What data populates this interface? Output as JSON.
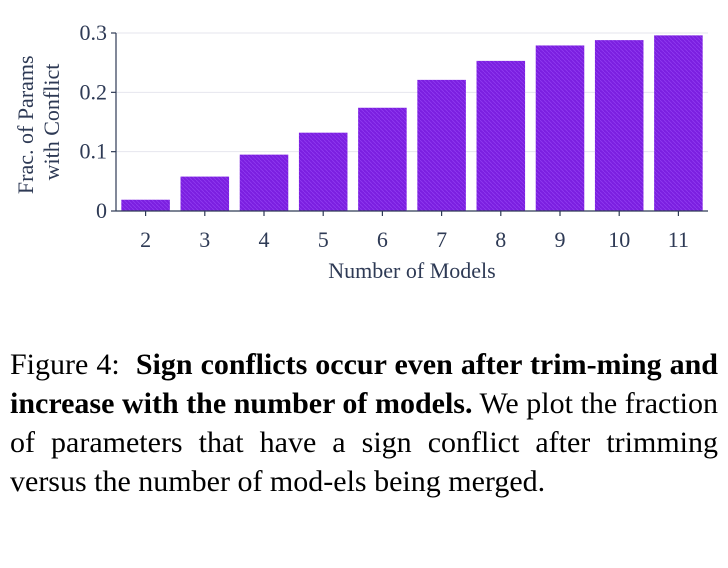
{
  "chart_data": {
    "type": "bar",
    "categories": [
      "2",
      "3",
      "4",
      "5",
      "6",
      "7",
      "8",
      "9",
      "10",
      "11"
    ],
    "values": [
      0.019,
      0.058,
      0.095,
      0.132,
      0.174,
      0.221,
      0.253,
      0.279,
      0.288,
      0.296
    ],
    "xlabel": "Number of Models",
    "ylabel_lines": [
      "Frac. of Params",
      "with Conflict"
    ],
    "ylim": [
      0,
      0.3
    ],
    "yticks": [
      0,
      0.1,
      0.2,
      0.3
    ],
    "ytick_labels": [
      "0",
      "0.1",
      "0.2",
      "0.3"
    ],
    "bar_color": "#7b1fe0",
    "grid": true
  },
  "caption": {
    "prefix": "Figure 4:",
    "title": "Sign conflicts occur even after trim-ming and increase with the number of models.",
    "body": "We plot the fraction of parameters that have a sign conflict after trimming versus the number of mod-els being merged."
  }
}
